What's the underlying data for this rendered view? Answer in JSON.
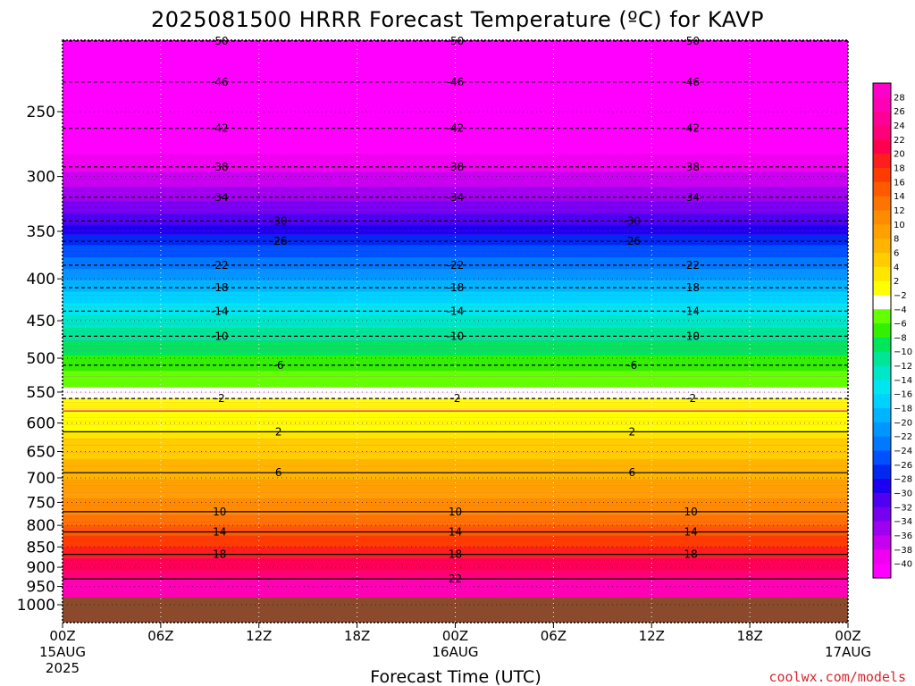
{
  "title": "2025081500 HRRR Forecast Temperature (ºC) for KAVP",
  "credit": "coolwx.com/models",
  "colors": {
    "credit": "#d9262e",
    "ground": "#8b4a2c",
    "positive_contour": "#000000",
    "negative_contour": "#000000",
    "zero_contour": "#e0218a"
  },
  "chart_data": {
    "type": "heatmap",
    "title": "2025081500 HRRR Forecast Temperature (ºC) for KAVP",
    "xlabel": "Forecast Time (UTC)",
    "ylabel": "",
    "y_axis": {
      "quantity": "pressure (hPa)",
      "scale": "log",
      "reversed": true,
      "ylim": [
        1000,
        200
      ]
    },
    "y_ticks": [
      250,
      300,
      350,
      400,
      450,
      500,
      550,
      600,
      650,
      700,
      750,
      800,
      850,
      900,
      950,
      1000
    ],
    "x_axis": {
      "range_hours": [
        0,
        48
      ],
      "tick_hours": [
        0,
        6,
        12,
        18,
        24,
        30,
        36,
        42,
        48
      ]
    },
    "x_ticks": [
      {
        "label": "00Z",
        "sub1": "15AUG",
        "sub2": "2025"
      },
      {
        "label": "06Z",
        "sub1": "",
        "sub2": ""
      },
      {
        "label": "12Z",
        "sub1": "",
        "sub2": ""
      },
      {
        "label": "18Z",
        "sub1": "",
        "sub2": ""
      },
      {
        "label": "00Z",
        "sub1": "16AUG",
        "sub2": ""
      },
      {
        "label": "06Z",
        "sub1": "",
        "sub2": ""
      },
      {
        "label": "12Z",
        "sub1": "",
        "sub2": ""
      },
      {
        "label": "18Z",
        "sub1": "",
        "sub2": ""
      },
      {
        "label": "00Z",
        "sub1": "17AUG",
        "sub2": ""
      }
    ],
    "grid": true,
    "ground_level_hpa": 980,
    "colorbar": {
      "placement": "right",
      "labels": [
        "28",
        "26",
        "24",
        "22",
        "20",
        "18",
        "16",
        "14",
        "12",
        "10",
        "8",
        "6",
        "4",
        "2",
        "−2",
        "−4",
        "−6",
        "−8",
        "−10",
        "−12",
        "−14",
        "−16",
        "−18",
        "−20",
        "−22",
        "−24",
        "−26",
        "−28",
        "−30",
        "−32",
        "−34",
        "−36",
        "−38",
        "−40"
      ],
      "colors": [
        "#ff00c8",
        "#ff00b4",
        "#ff0096",
        "#ff0078",
        "#ff0050",
        "#ff1e1e",
        "#ff3c00",
        "#ff5a00",
        "#ff7300",
        "#ff8c00",
        "#ffa000",
        "#ffb400",
        "#ffcd00",
        "#ffe600",
        "#ffff00",
        "#ffffff",
        "#64ff00",
        "#32f000",
        "#00e65a",
        "#00e696",
        "#00e6c8",
        "#00e6f0",
        "#00d2ff",
        "#00b4ff",
        "#0096ff",
        "#0078ff",
        "#0050ff",
        "#0028f0",
        "#1e00f0",
        "#5000f0",
        "#7800f0",
        "#a000f0",
        "#c800f0",
        "#f000f0",
        "#ff00ff"
      ]
    },
    "isotherms": [
      {
        "temp_c": -50,
        "hpa_at_x": [
          205,
          205,
          205,
          205,
          205,
          205,
          205,
          205,
          205
        ],
        "labels": [
          "-50",
          "-50",
          "-50"
        ]
      },
      {
        "temp_c": -46,
        "hpa_at_x": [
          230,
          230,
          230,
          230,
          230,
          230,
          230,
          230,
          230
        ],
        "labels": [
          "-46",
          "-46",
          "-46"
        ]
      },
      {
        "temp_c": -42,
        "hpa_at_x": [
          262,
          262,
          262,
          262,
          262,
          262,
          262,
          262,
          262
        ],
        "labels": [
          "-42",
          "-42",
          "-42"
        ]
      },
      {
        "temp_c": -38,
        "hpa_at_x": [
          292,
          292,
          292,
          292,
          292,
          292,
          292,
          292,
          292
        ],
        "labels": [
          "-38",
          "-38",
          "-38"
        ]
      },
      {
        "temp_c": -34,
        "hpa_at_x": [
          318,
          318,
          318,
          318,
          318,
          318,
          318,
          318,
          318
        ],
        "labels": [
          "-34",
          "-34",
          "-34"
        ]
      },
      {
        "temp_c": -30,
        "hpa_at_x": [
          340,
          340,
          340,
          340,
          340,
          340,
          340,
          340,
          340
        ],
        "labels": [
          "-30",
          "-30"
        ]
      },
      {
        "temp_c": -26,
        "hpa_at_x": [
          360,
          360,
          360,
          360,
          360,
          360,
          360,
          360,
          360
        ],
        "labels": [
          "-26",
          "-26"
        ]
      },
      {
        "temp_c": -22,
        "hpa_at_x": [
          385,
          385,
          385,
          385,
          385,
          385,
          385,
          385,
          385
        ],
        "labels": [
          "-22",
          "-22",
          "-22"
        ]
      },
      {
        "temp_c": -18,
        "hpa_at_x": [
          410,
          410,
          410,
          410,
          410,
          410,
          410,
          410,
          410
        ],
        "labels": [
          "-18",
          "-18",
          "-18"
        ]
      },
      {
        "temp_c": -14,
        "hpa_at_x": [
          438,
          438,
          438,
          438,
          438,
          438,
          438,
          438,
          438
        ],
        "labels": [
          "-14",
          "-14",
          "-14"
        ]
      },
      {
        "temp_c": -10,
        "hpa_at_x": [
          470,
          470,
          470,
          470,
          470,
          470,
          470,
          470,
          470
        ],
        "labels": [
          "-10",
          "-10",
          "-10"
        ]
      },
      {
        "temp_c": -6,
        "hpa_at_x": [
          510,
          510,
          510,
          510,
          510,
          510,
          510,
          510,
          510
        ],
        "labels": [
          "-6",
          "-6"
        ]
      },
      {
        "temp_c": -2,
        "hpa_at_x": [
          560,
          560,
          560,
          560,
          560,
          560,
          560,
          560,
          560
        ],
        "labels": [
          "-2",
          "-2",
          "-2"
        ]
      },
      {
        "temp_c": 2,
        "hpa_at_x": [
          615,
          615,
          615,
          615,
          615,
          615,
          615,
          615,
          615
        ],
        "labels": [
          "2",
          "2"
        ]
      },
      {
        "temp_c": 6,
        "hpa_at_x": [
          690,
          690,
          690,
          690,
          690,
          690,
          690,
          690,
          690
        ],
        "labels": [
          "6",
          "6"
        ]
      },
      {
        "temp_c": 10,
        "hpa_at_x": [
          770,
          770,
          770,
          770,
          770,
          770,
          770,
          770,
          770
        ],
        "labels": [
          "10",
          "10",
          "10"
        ]
      },
      {
        "temp_c": 14,
        "hpa_at_x": [
          815,
          815,
          815,
          815,
          815,
          815,
          815,
          815,
          815
        ],
        "labels": [
          "14",
          "14",
          "14"
        ]
      },
      {
        "temp_c": 18,
        "hpa_at_x": [
          868,
          868,
          868,
          868,
          868,
          868,
          868,
          868,
          868
        ],
        "labels": [
          "18",
          "18",
          "18"
        ]
      },
      {
        "temp_c": 22,
        "hpa_at_x": [
          930,
          930,
          930,
          930,
          930,
          930,
          930,
          930,
          930
        ],
        "labels": [
          "22"
        ]
      }
    ],
    "zero_line": {
      "temp_c": 0,
      "hpa_at_x": [
        580,
        580,
        580,
        580,
        580,
        580,
        580,
        580,
        580
      ]
    }
  }
}
